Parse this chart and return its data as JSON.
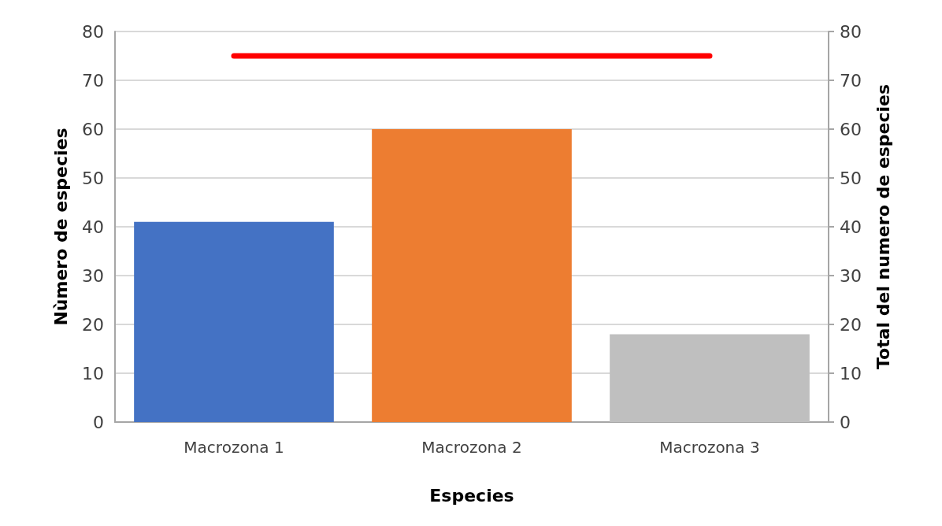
{
  "chart_data": {
    "type": "bar",
    "xlabel": "Especies",
    "ylabel": "Nùmero de especies",
    "y2label": "Total del numero de especies",
    "categories": [
      "Macrozona 1",
      "Macrozona 2",
      "Macrozona 3"
    ],
    "series": [
      {
        "colors": [
          "#4472c4",
          "#ed7d31",
          "#bfbfbf"
        ],
        "values": [
          41,
          60,
          18
        ]
      },
      {
        "type": "line",
        "axis": "y2",
        "color": "#ff0000",
        "marker": "none",
        "line_style": "solid",
        "values": [
          75,
          75,
          75
        ]
      }
    ],
    "ylim": [
      0,
      80
    ],
    "yticks": [
      0,
      10,
      20,
      30,
      40,
      50,
      60,
      70,
      80
    ],
    "y2lim": [
      0,
      80
    ],
    "y2ticks": [
      0,
      10,
      20,
      30,
      40,
      50,
      60,
      70,
      80
    ],
    "grid": "y"
  }
}
